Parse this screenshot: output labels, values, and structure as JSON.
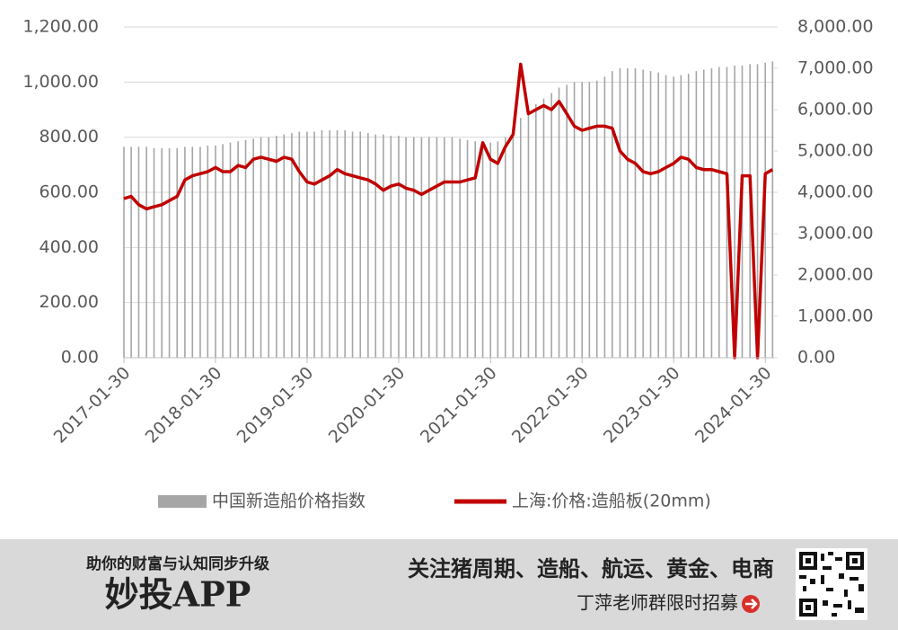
{
  "chart_data": {
    "type": "bar-line",
    "x": [
      "2017-01-30",
      "2017-02-28",
      "2017-03-30",
      "2017-04-30",
      "2017-05-30",
      "2017-06-30",
      "2017-07-30",
      "2017-08-30",
      "2017-09-30",
      "2017-10-30",
      "2017-11-30",
      "2017-12-30",
      "2018-01-30",
      "2018-02-28",
      "2018-03-30",
      "2018-04-30",
      "2018-05-30",
      "2018-06-30",
      "2018-07-30",
      "2018-08-30",
      "2018-09-30",
      "2018-10-30",
      "2018-11-30",
      "2018-12-30",
      "2019-01-30",
      "2019-02-28",
      "2019-03-30",
      "2019-04-30",
      "2019-05-30",
      "2019-06-30",
      "2019-07-30",
      "2019-08-30",
      "2019-09-30",
      "2019-10-30",
      "2019-11-30",
      "2019-12-30",
      "2020-01-30",
      "2020-02-28",
      "2020-03-30",
      "2020-04-30",
      "2020-05-30",
      "2020-06-30",
      "2020-07-30",
      "2020-08-30",
      "2020-09-30",
      "2020-10-30",
      "2020-11-30",
      "2020-12-30",
      "2021-01-30",
      "2021-02-28",
      "2021-03-30",
      "2021-04-30",
      "2021-05-30",
      "2021-06-30",
      "2021-07-30",
      "2021-08-30",
      "2021-09-30",
      "2021-10-30",
      "2021-11-30",
      "2021-12-30",
      "2022-01-30",
      "2022-02-28",
      "2022-03-30",
      "2022-04-30",
      "2022-05-30",
      "2022-06-30",
      "2022-07-30",
      "2022-08-30",
      "2022-09-30",
      "2022-10-30",
      "2022-11-30",
      "2022-12-30",
      "2023-01-30",
      "2023-02-28",
      "2023-03-30",
      "2023-04-30",
      "2023-05-30",
      "2023-06-30",
      "2023-07-30",
      "2023-08-30",
      "2023-09-30",
      "2023-10-30",
      "2023-11-30",
      "2023-12-30",
      "2024-01-30",
      "2024-02-28"
    ],
    "series": [
      {
        "name": "中国新造船价格指数",
        "color": "#a6a6a6",
        "values": [
          765,
          765,
          765,
          765,
          760,
          760,
          760,
          760,
          765,
          765,
          765,
          770,
          770,
          775,
          780,
          785,
          790,
          795,
          800,
          800,
          805,
          810,
          815,
          820,
          820,
          820,
          825,
          825,
          825,
          825,
          820,
          820,
          815,
          810,
          810,
          805,
          805,
          800,
          800,
          800,
          800,
          800,
          800,
          800,
          795,
          790,
          785,
          785,
          780,
          785,
          800,
          830,
          870,
          900,
          920,
          940,
          960,
          980,
          990,
          1000,
          1000,
          1000,
          1005,
          1020,
          1040,
          1050,
          1050,
          1050,
          1045,
          1040,
          1035,
          1025,
          1020,
          1025,
          1030,
          1040,
          1045,
          1050,
          1055,
          1055,
          1060,
          1060,
          1065,
          1065,
          1070,
          1075
        ]
      },
      {
        "name": "上海:价格:造船板(20mm)",
        "color": "#c00000",
        "axis": "y2",
        "values": [
          3850,
          3900,
          3700,
          3600,
          3650,
          3700,
          3800,
          3900,
          4300,
          4400,
          4450,
          4500,
          4600,
          4500,
          4500,
          4650,
          4600,
          4800,
          4850,
          4800,
          4750,
          4850,
          4800,
          4500,
          4250,
          4200,
          4300,
          4400,
          4550,
          4450,
          4400,
          4350,
          4300,
          4200,
          4050,
          4150,
          4200,
          4100,
          4050,
          3950,
          4050,
          4150,
          4250,
          4250,
          4250,
          4300,
          4350,
          5200,
          4800,
          4700,
          5100,
          5400,
          7100,
          5900,
          6000,
          6100,
          6000,
          6200,
          5900,
          5600,
          5500,
          5550,
          5600,
          5600,
          5550,
          5000,
          4800,
          4700,
          4500,
          4450,
          4500,
          4600,
          4700,
          4850,
          4800,
          4600,
          4550,
          4550,
          4500,
          4450,
          0,
          4400,
          4400,
          0,
          4450,
          4550
        ]
      }
    ],
    "xlim": [
      "2017-01-30",
      "2024-03-05"
    ],
    "xticks": [
      "2017-01-30",
      "2018-01-30",
      "2019-01-30",
      "2020-01-30",
      "2021-01-30",
      "2022-01-30",
      "2023-01-30",
      "2024-01-30"
    ],
    "ylim": [
      0,
      1200
    ],
    "yticks": [
      {
        "value": 0,
        "label": "0.00"
      },
      {
        "value": 200,
        "label": "200.00"
      },
      {
        "value": 400,
        "label": "400.00"
      },
      {
        "value": 600,
        "label": "600.00"
      },
      {
        "value": 800,
        "label": "800.00"
      },
      {
        "value": 1000,
        "label": "1,000.00"
      },
      {
        "value": 1200,
        "label": "1,200.00"
      }
    ],
    "y2lim": [
      0,
      8000
    ],
    "y2ticks": [
      {
        "value": 0,
        "label": "0.00"
      },
      {
        "value": 1000,
        "label": "1,000.00"
      },
      {
        "value": 2000,
        "label": "2,000.00"
      },
      {
        "value": 3000,
        "label": "3,000.00"
      },
      {
        "value": 4000,
        "label": "4,000.00"
      },
      {
        "value": 5000,
        "label": "5,000.00"
      },
      {
        "value": 6000,
        "label": "6,000.00"
      },
      {
        "value": 7000,
        "label": "7,000.00"
      },
      {
        "value": 8000,
        "label": "8,000.00"
      }
    ],
    "grid": true,
    "legend": "bottom"
  },
  "banner": {
    "slogan": "助你的财富与认知同步升级",
    "brand": "妙投APP",
    "topics": "关注猪周期、造船、航运、黄金、电商",
    "cta": "丁萍老师群限时招募"
  }
}
